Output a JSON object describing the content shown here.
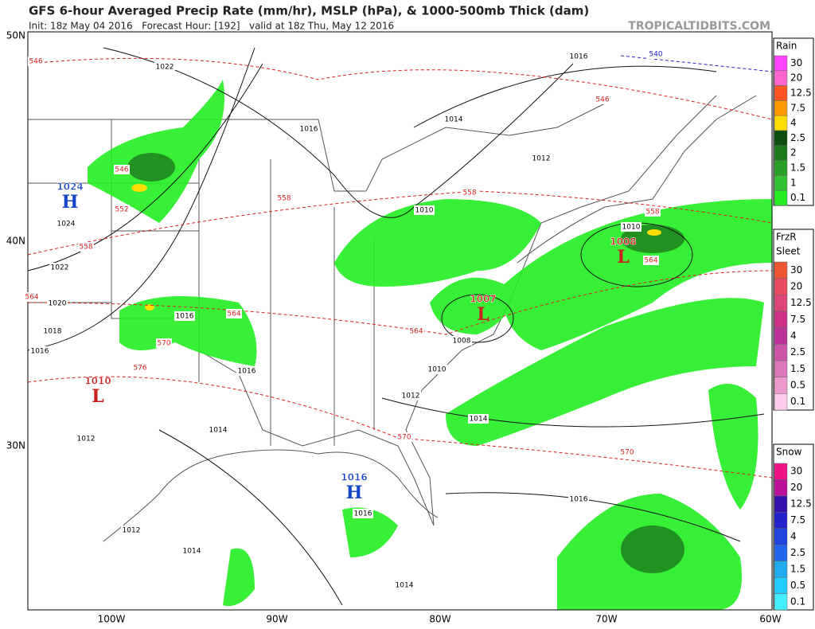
{
  "header": {
    "title": "GFS 6-hour Averaged Precip Rate (mm/hr), MSLP (hPa), & 1000-500mb Thick (dam)",
    "subtitle": "Init: 18z May 04 2016   Forecast Hour: [192]   valid at 18z Thu, May 12 2016",
    "brand": "TROPICALTIDBITS.COM"
  },
  "map": {
    "lat_labels": [
      "50N",
      "40N",
      "30N"
    ],
    "lon_labels": [
      "100W",
      "90W",
      "80W",
      "70W",
      "60W"
    ],
    "isobar_labels": [
      "1022",
      "1016",
      "1014",
      "1016",
      "1012",
      "1024",
      "1022",
      "1020",
      "1018",
      "1016",
      "1016",
      "1016",
      "1010",
      "1010",
      "1008",
      "1010",
      "1012",
      "1014",
      "1014",
      "1012",
      "1012",
      "1014",
      "1016",
      "1016",
      "1014"
    ],
    "thickness_labels": [
      "546",
      "546",
      "540",
      "546",
      "552",
      "558",
      "558",
      "558",
      "558",
      "564",
      "564",
      "570",
      "576",
      "564",
      "564",
      "570",
      "570"
    ],
    "centers": [
      {
        "letter": "H",
        "value": "1024"
      },
      {
        "letter": "L",
        "value": "1010"
      },
      {
        "letter": "L",
        "value": "1008"
      },
      {
        "letter": "L",
        "value": "1007"
      },
      {
        "letter": "H",
        "value": "1016"
      }
    ]
  },
  "legends": [
    {
      "titles": [
        "Rain"
      ],
      "items": [
        {
          "label": "30",
          "color": "#ff44ff"
        },
        {
          "label": "20",
          "color": "#ff66cc"
        },
        {
          "label": "12.5",
          "color": "#ff5522"
        },
        {
          "label": "7.5",
          "color": "#ff9900"
        },
        {
          "label": "4",
          "color": "#ffdd00"
        },
        {
          "label": "2.5",
          "color": "#0d4d0d"
        },
        {
          "label": "2",
          "color": "#1b7a1b"
        },
        {
          "label": "1.5",
          "color": "#28a028"
        },
        {
          "label": "1",
          "color": "#33c233"
        },
        {
          "label": "0.1",
          "color": "#22ee22"
        }
      ]
    },
    {
      "titles": [
        "FrzR",
        "Sleet"
      ],
      "items": [
        {
          "label": "30",
          "color": "#ee5533"
        },
        {
          "label": "20",
          "color": "#e84a5f"
        },
        {
          "label": "12.5",
          "color": "#dd4477"
        },
        {
          "label": "7.5",
          "color": "#cc3388"
        },
        {
          "label": "4",
          "color": "#bb3399"
        },
        {
          "label": "2.5",
          "color": "#cc55aa"
        },
        {
          "label": "1.5",
          "color": "#dd77bb"
        },
        {
          "label": "0.5",
          "color": "#ee99cc"
        },
        {
          "label": "0.1",
          "color": "#ffccee"
        }
      ]
    },
    {
      "titles": [
        "Snow"
      ],
      "items": [
        {
          "label": "30",
          "color": "#ee1188"
        },
        {
          "label": "20",
          "color": "#bb1199"
        },
        {
          "label": "12.5",
          "color": "#3311aa"
        },
        {
          "label": "7.5",
          "color": "#2222cc"
        },
        {
          "label": "4",
          "color": "#2244dd"
        },
        {
          "label": "2.5",
          "color": "#2266ee"
        },
        {
          "label": "1.5",
          "color": "#22aaee"
        },
        {
          "label": "0.5",
          "color": "#22ccff"
        },
        {
          "label": "0.1",
          "color": "#44eeff"
        }
      ]
    }
  ]
}
